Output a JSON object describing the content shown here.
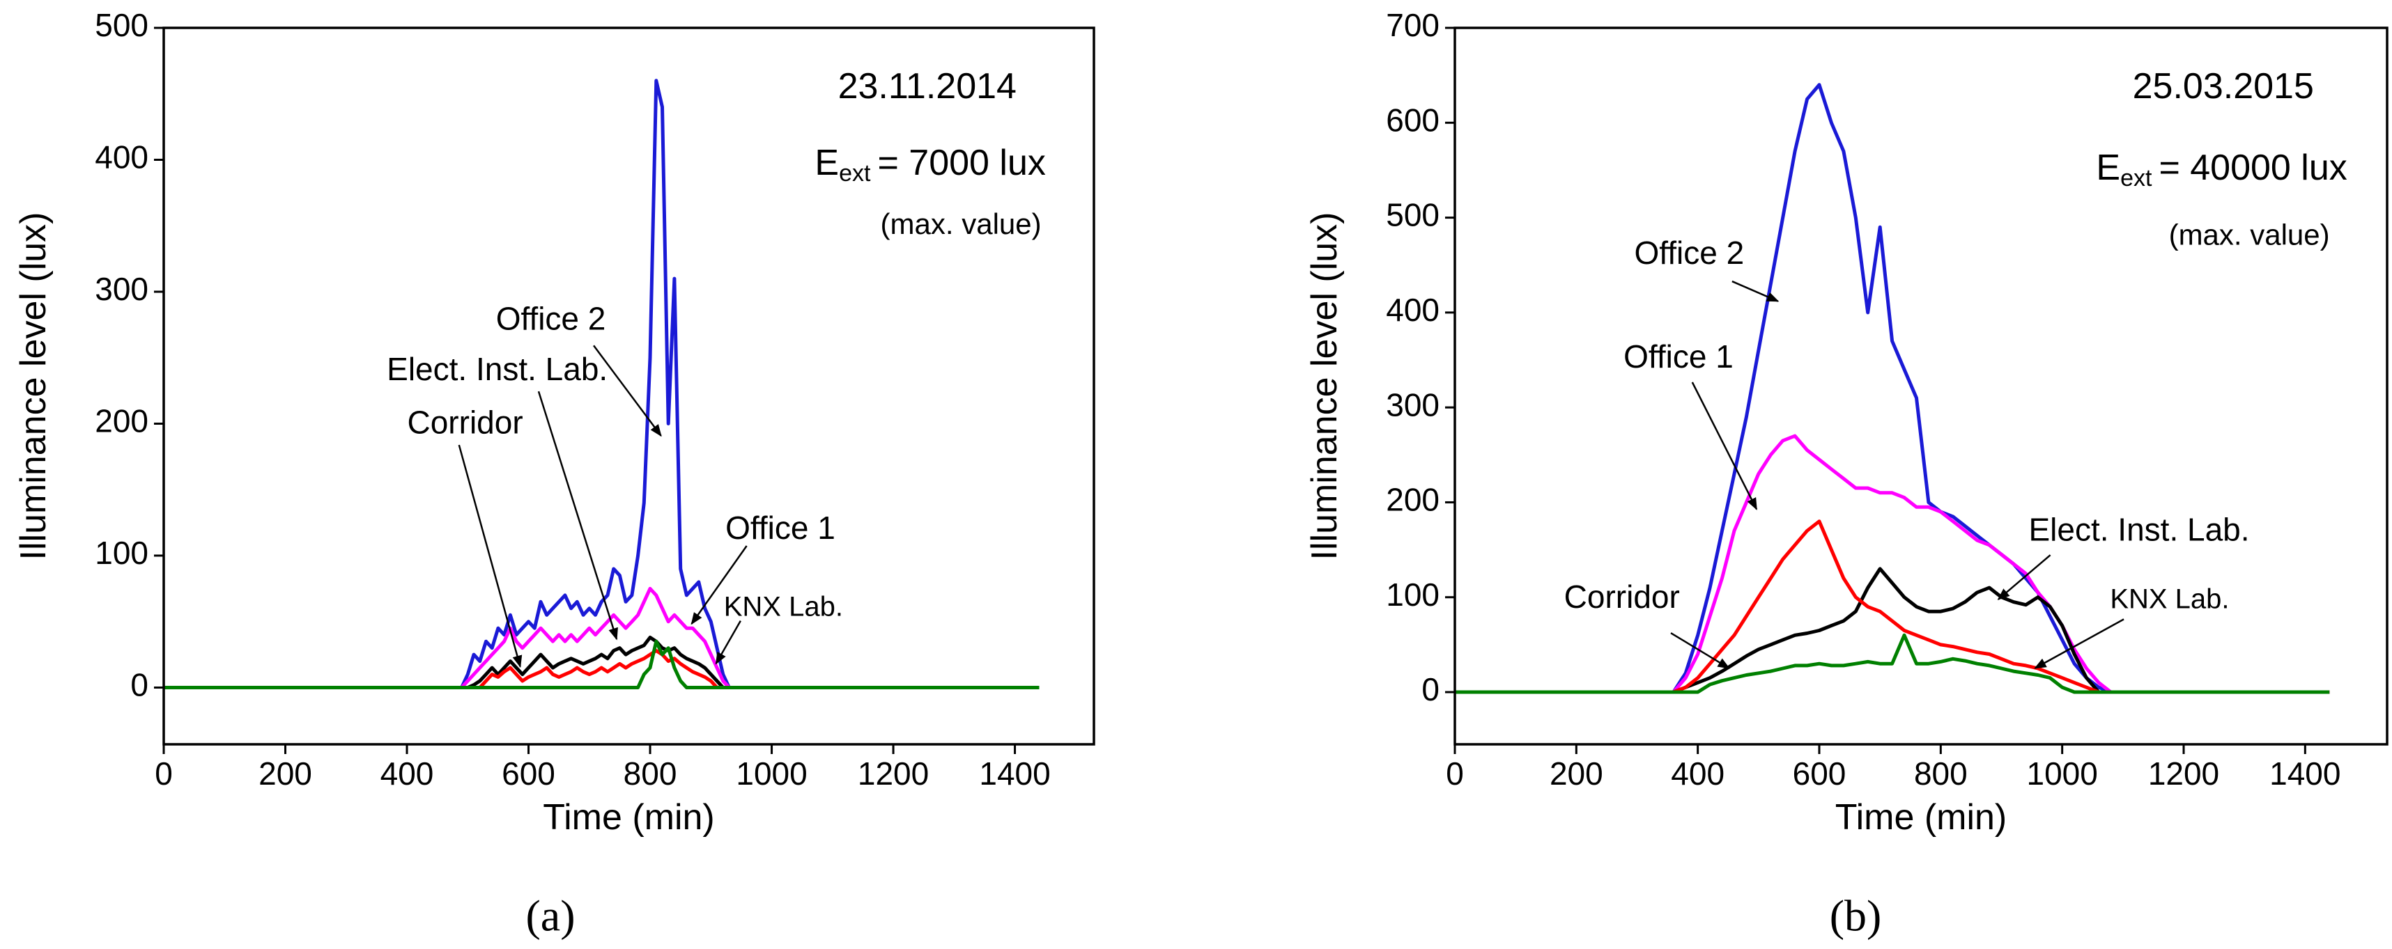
{
  "chart_data": [
    {
      "type": "line",
      "x_label": "Time (min)",
      "y_label": "Illuminance level (lux)",
      "date": "23.11.2014",
      "ext_symbol": "E",
      "ext_sub": "ext",
      "ext_text": "= 7000 lux",
      "note": "(max. value)",
      "caption": "(a)",
      "xlim": [
        0,
        1530
      ],
      "ylim": [
        -43,
        500
      ],
      "xticks": [
        0,
        200,
        400,
        600,
        800,
        1000,
        1200,
        1400
      ],
      "yticks": [
        0,
        100,
        200,
        300,
        400,
        500
      ],
      "x": [
        0,
        480,
        490,
        500,
        510,
        520,
        530,
        540,
        550,
        560,
        570,
        580,
        590,
        600,
        610,
        620,
        630,
        640,
        650,
        660,
        670,
        680,
        690,
        700,
        710,
        720,
        730,
        740,
        750,
        760,
        770,
        780,
        790,
        800,
        810,
        820,
        830,
        840,
        850,
        860,
        870,
        880,
        890,
        900,
        910,
        920,
        930,
        940,
        1440
      ],
      "series": [
        {
          "name": "Office 2",
          "color": "#1a1ad6",
          "values": [
            0,
            0,
            0,
            10,
            25,
            20,
            35,
            30,
            45,
            40,
            55,
            40,
            45,
            50,
            45,
            65,
            55,
            60,
            65,
            70,
            60,
            65,
            55,
            60,
            55,
            65,
            70,
            90,
            85,
            65,
            70,
            100,
            140,
            250,
            460,
            440,
            200,
            310,
            90,
            70,
            75,
            80,
            60,
            50,
            30,
            10,
            0,
            0,
            0
          ]
        },
        {
          "name": "Office 1",
          "color": "#ff00ff",
          "values": [
            0,
            0,
            0,
            5,
            10,
            15,
            20,
            25,
            30,
            35,
            45,
            35,
            30,
            35,
            40,
            45,
            40,
            35,
            40,
            35,
            40,
            35,
            40,
            45,
            40,
            45,
            50,
            55,
            50,
            45,
            50,
            55,
            65,
            75,
            70,
            60,
            50,
            55,
            50,
            45,
            45,
            40,
            35,
            25,
            15,
            5,
            0,
            0,
            0
          ]
        },
        {
          "name": "Elect. Inst. Lab.",
          "color": "#000000",
          "values": [
            0,
            0,
            0,
            0,
            2,
            5,
            10,
            15,
            10,
            15,
            20,
            15,
            10,
            15,
            20,
            25,
            20,
            15,
            18,
            20,
            22,
            20,
            18,
            20,
            22,
            25,
            22,
            28,
            30,
            25,
            28,
            30,
            32,
            38,
            35,
            30,
            28,
            30,
            25,
            22,
            20,
            18,
            15,
            10,
            5,
            0,
            0,
            0,
            0
          ]
        },
        {
          "name": "Corridor",
          "color": "#ff0000",
          "values": [
            0,
            0,
            0,
            0,
            0,
            0,
            5,
            10,
            8,
            12,
            15,
            10,
            5,
            8,
            10,
            12,
            15,
            10,
            8,
            10,
            12,
            15,
            12,
            10,
            12,
            15,
            12,
            15,
            18,
            15,
            18,
            20,
            22,
            25,
            28,
            25,
            20,
            22,
            18,
            15,
            12,
            10,
            8,
            5,
            0,
            0,
            0,
            0,
            0
          ]
        },
        {
          "name": "KNX Lab.",
          "color": "#008000",
          "values": [
            0,
            0,
            0,
            0,
            0,
            0,
            0,
            0,
            0,
            0,
            0,
            0,
            0,
            0,
            0,
            0,
            0,
            0,
            0,
            0,
            0,
            0,
            0,
            0,
            0,
            0,
            0,
            0,
            0,
            0,
            0,
            0,
            10,
            15,
            35,
            25,
            30,
            15,
            5,
            0,
            0,
            0,
            0,
            0,
            0,
            0,
            0,
            0,
            0
          ]
        }
      ]
    },
    {
      "type": "line",
      "x_label": "Time (min)",
      "y_label": "Illuminance level (lux)",
      "date": "25.03.2015",
      "ext_symbol": "E",
      "ext_sub": "ext",
      "ext_text": "= 40000 lux",
      "note": "(max. value)",
      "caption": "(b)",
      "xlim": [
        0,
        1535
      ],
      "ylim": [
        -55,
        700
      ],
      "xticks": [
        0,
        200,
        400,
        600,
        800,
        1000,
        1200,
        1400
      ],
      "yticks": [
        0,
        100,
        200,
        300,
        400,
        500,
        600,
        700
      ],
      "x": [
        0,
        340,
        360,
        380,
        400,
        420,
        440,
        460,
        480,
        500,
        520,
        540,
        560,
        580,
        600,
        620,
        640,
        660,
        680,
        700,
        720,
        740,
        760,
        780,
        800,
        820,
        840,
        860,
        880,
        900,
        920,
        940,
        960,
        980,
        1000,
        1020,
        1040,
        1060,
        1080,
        1100,
        1440
      ],
      "series": [
        {
          "name": "Office 2",
          "color": "#1a1ad6",
          "values": [
            0,
            0,
            0,
            20,
            60,
            110,
            170,
            230,
            290,
            360,
            430,
            500,
            570,
            625,
            640,
            600,
            570,
            500,
            400,
            490,
            370,
            340,
            310,
            200,
            190,
            185,
            175,
            165,
            155,
            145,
            135,
            120,
            105,
            80,
            55,
            30,
            15,
            5,
            0,
            0,
            0
          ]
        },
        {
          "name": "Office 1",
          "color": "#ff00ff",
          "values": [
            0,
            0,
            0,
            15,
            40,
            80,
            120,
            170,
            200,
            230,
            250,
            265,
            270,
            255,
            245,
            235,
            225,
            215,
            215,
            210,
            210,
            205,
            195,
            195,
            190,
            180,
            170,
            160,
            155,
            145,
            135,
            125,
            105,
            90,
            70,
            45,
            25,
            10,
            0,
            0,
            0
          ]
        },
        {
          "name": "Elect. Inst. Lab.",
          "color": "#000000",
          "values": [
            0,
            0,
            0,
            5,
            10,
            15,
            22,
            30,
            38,
            45,
            50,
            55,
            60,
            62,
            65,
            70,
            75,
            85,
            110,
            130,
            115,
            100,
            90,
            85,
            85,
            88,
            95,
            105,
            110,
            100,
            95,
            92,
            100,
            90,
            70,
            40,
            15,
            0,
            0,
            0,
            0
          ]
        },
        {
          "name": "Corridor",
          "color": "#ff0000",
          "values": [
            0,
            0,
            0,
            5,
            15,
            30,
            45,
            60,
            80,
            100,
            120,
            140,
            155,
            170,
            180,
            150,
            120,
            100,
            90,
            85,
            75,
            65,
            60,
            55,
            50,
            48,
            45,
            42,
            40,
            35,
            30,
            28,
            25,
            20,
            15,
            10,
            5,
            0,
            0,
            0,
            0
          ]
        },
        {
          "name": "KNX Lab.",
          "color": "#008000",
          "values": [
            0,
            0,
            0,
            0,
            0,
            8,
            12,
            15,
            18,
            20,
            22,
            25,
            28,
            28,
            30,
            28,
            28,
            30,
            32,
            30,
            30,
            60,
            30,
            30,
            32,
            35,
            33,
            30,
            28,
            25,
            22,
            20,
            18,
            15,
            5,
            0,
            0,
            0,
            0,
            0,
            0
          ]
        }
      ]
    }
  ]
}
